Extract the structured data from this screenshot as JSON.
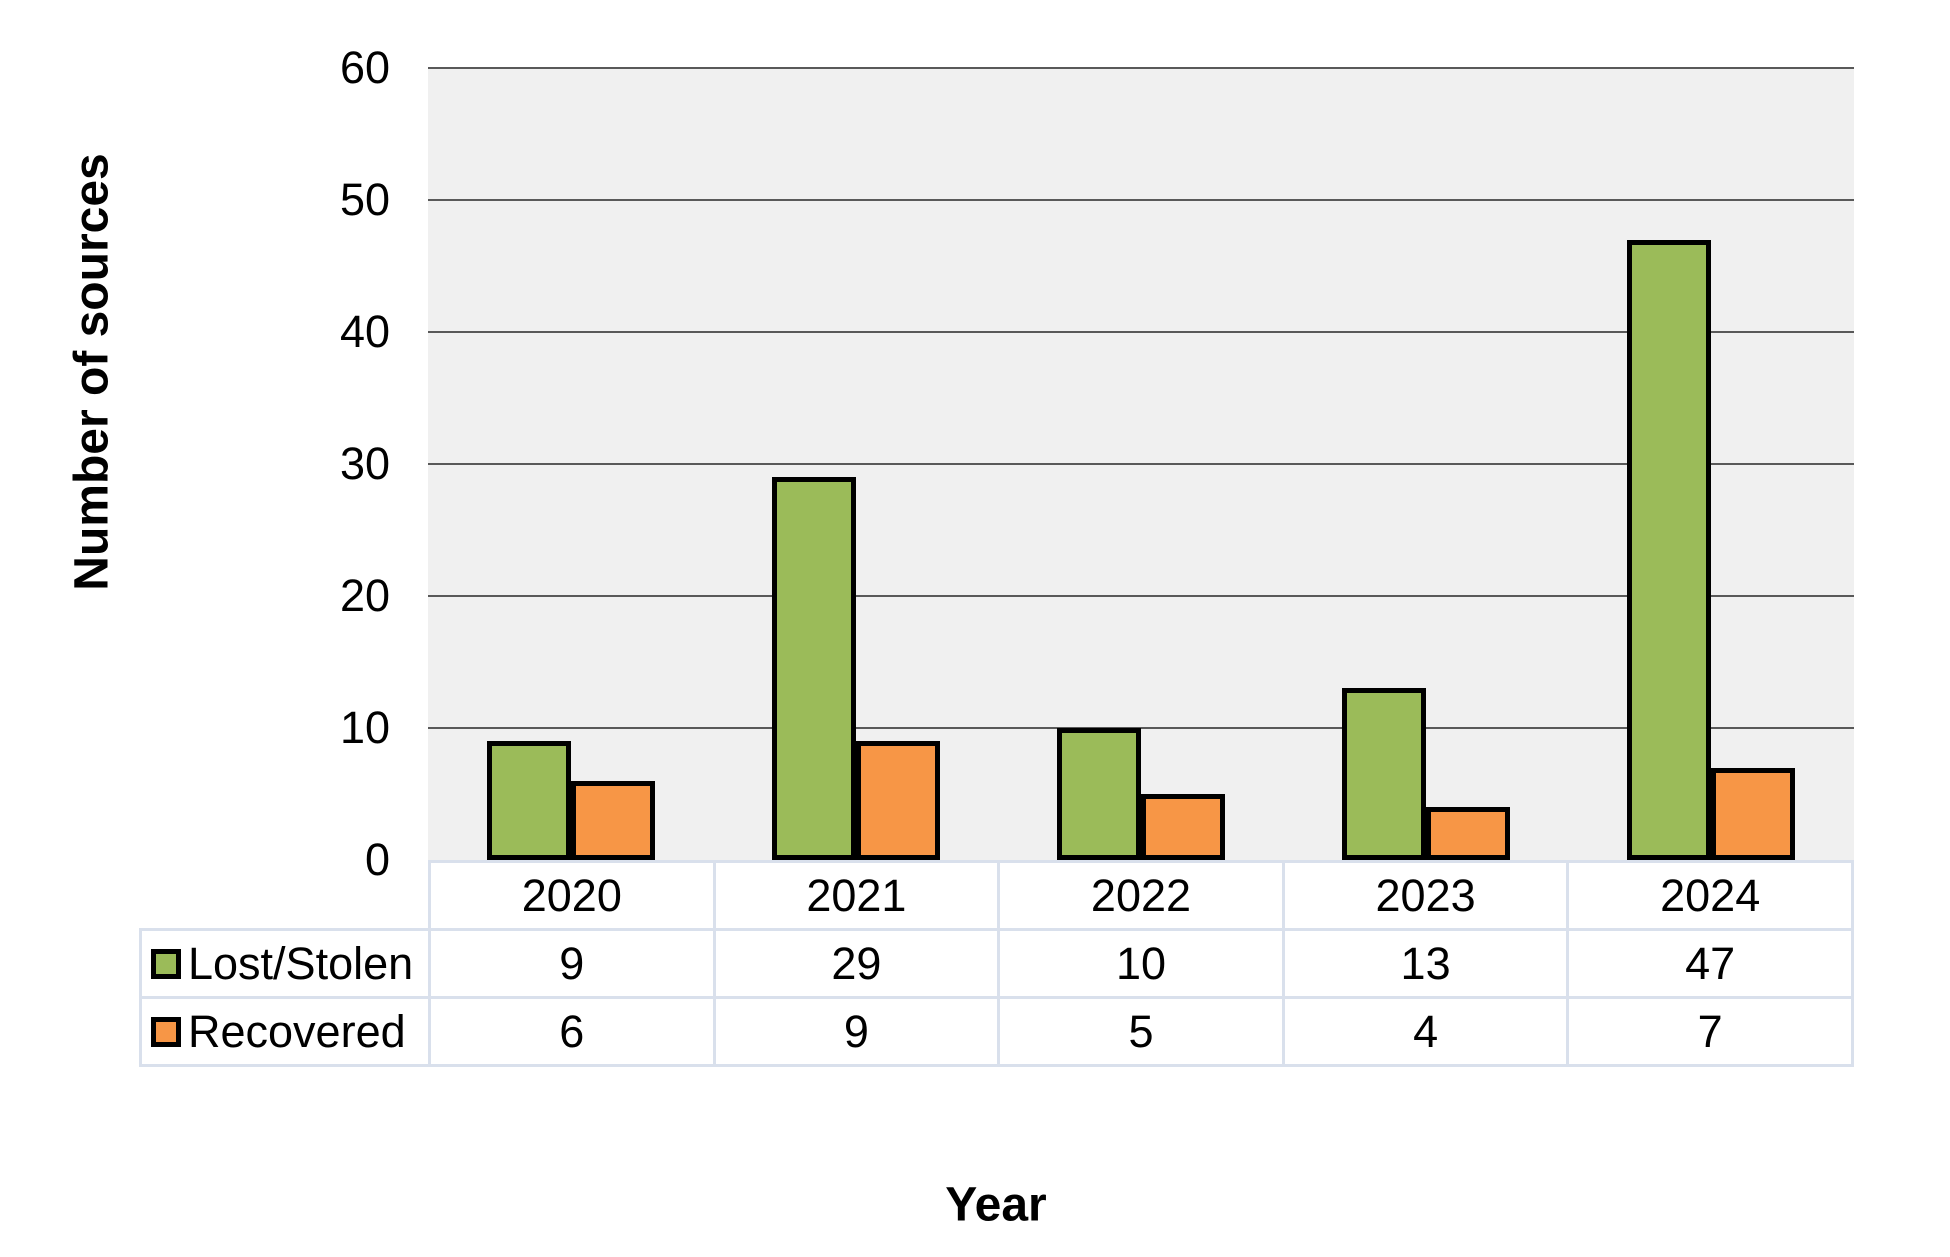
{
  "figure": {
    "y_axis_title": "Number of sources",
    "x_axis_title": "Year"
  },
  "chart_data": {
    "type": "bar",
    "title": "",
    "categories": [
      "2020",
      "2021",
      "2022",
      "2023",
      "2024"
    ],
    "series": [
      {
        "name": "Lost/Stolen",
        "values": [
          9,
          29,
          10,
          13,
          47
        ],
        "color": "#9BBB59"
      },
      {
        "name": "Recovered",
        "values": [
          6,
          9,
          5,
          4,
          7
        ],
        "color": "#F79646"
      }
    ],
    "xlabel": "Year",
    "ylabel": "Number of sources",
    "ylim": [
      0,
      60
    ],
    "yticks": [
      0,
      10,
      20,
      30,
      40,
      50,
      60
    ],
    "grid": true,
    "legend_position": "data-table-row-headers",
    "data_table_shown": true,
    "colors": {
      "plot_background": "#F0F0F0",
      "gridline": "#595959",
      "bar_border": "#000000",
      "table_border": "#D9E0EC",
      "text": "#000000"
    }
  }
}
